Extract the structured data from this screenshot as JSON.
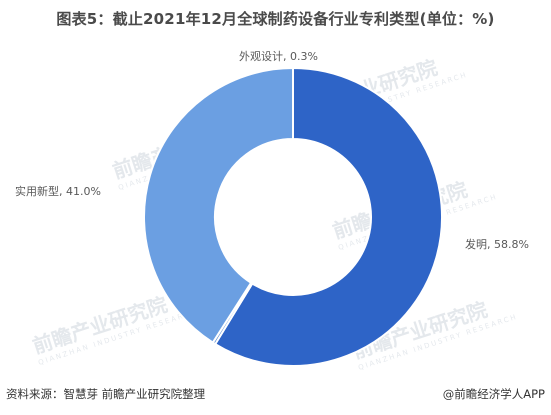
{
  "title": "图表5：截止2021年12月全球制药设备行业专利类型(单位：%)",
  "watermark": {
    "text": "前瞻产业研究院",
    "sub": "QIANZHAN INDUSTRY RESEARCH"
  },
  "chart_data": {
    "type": "pie",
    "donut": true,
    "categories": [
      "发明",
      "外观设计",
      "实用新型"
    ],
    "values": [
      58.8,
      0.3,
      41.0
    ],
    "labels": [
      "发明, 58.8%",
      "外观设计, 0.3%",
      "实用新型, 41.0%"
    ],
    "colors": [
      "#2e64c7",
      "#5b8bd0",
      "#6b9fe2"
    ],
    "unit": "%"
  },
  "footer": {
    "source": "资料来源：智慧芽 前瞻产业研究院整理",
    "brand": "@前瞻经济学人APP"
  }
}
